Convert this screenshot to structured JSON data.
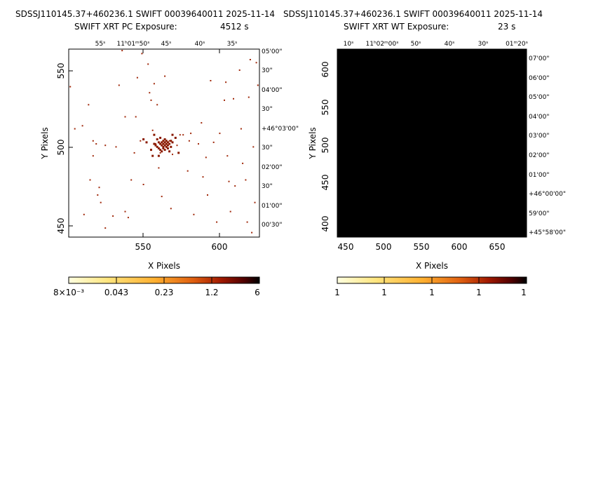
{
  "chart_data": [
    {
      "type": "heatmap",
      "title": "SDSSJ110145.37+460236.1 SWIFT 00039640011 2025-11-14",
      "subtitle_left": "SWIFT XRT PC Exposure:",
      "exposure": "4512 s",
      "xlabel": "X Pixels",
      "ylabel": "Y Pixels",
      "xlim": [
        503,
        628
      ],
      "ylim": [
        443,
        568
      ],
      "xticks": [
        "550",
        "600"
      ],
      "yticks": [
        "450",
        "500",
        "550"
      ],
      "ra_ticks": [
        "55ˢ",
        "11ʰ01ᵐ50ˢ",
        "45ˢ",
        "40ˢ",
        "35ˢ"
      ],
      "dec_ticks": [
        "05'00\"",
        "30\"",
        "04'00\"",
        "30\"",
        "+46°03'00\"",
        "30\"",
        "02'00\"",
        "30\"",
        "01'00\"",
        "00'30\""
      ],
      "colorbar_labels": [
        "8×10⁻³",
        "0.043",
        "0.23",
        "1.2",
        "6"
      ],
      "source_center": [
        565,
        504
      ],
      "events": [
        [
          504,
          543
        ],
        [
          507,
          515
        ],
        [
          512,
          517
        ],
        [
          513,
          458
        ],
        [
          516,
          531
        ],
        [
          517,
          481
        ],
        [
          519,
          507
        ],
        [
          519,
          497
        ],
        [
          521,
          505
        ],
        [
          522,
          471
        ],
        [
          523,
          476
        ],
        [
          524,
          466
        ],
        [
          527,
          449
        ],
        [
          527,
          504
        ],
        [
          532,
          457
        ],
        [
          534,
          503
        ],
        [
          536,
          544
        ],
        [
          538,
          567
        ],
        [
          540,
          523
        ],
        [
          540,
          460
        ],
        [
          542,
          456
        ],
        [
          544,
          481
        ],
        [
          546,
          499
        ],
        [
          547,
          523
        ],
        [
          548,
          549
        ],
        [
          550,
          507
        ],
        [
          551,
          565
        ],
        [
          552,
          478
        ],
        [
          555,
          558
        ],
        [
          556,
          539
        ],
        [
          557,
          534
        ],
        [
          558,
          514
        ],
        [
          559,
          545
        ],
        [
          560,
          505
        ],
        [
          561,
          531
        ],
        [
          562,
          489
        ],
        [
          563,
          499
        ],
        [
          564,
          470
        ],
        [
          566,
          550
        ],
        [
          569,
          507
        ],
        [
          570,
          462
        ],
        [
          571,
          498
        ],
        [
          574,
          504
        ],
        [
          576,
          511
        ],
        [
          578,
          511
        ],
        [
          581,
          487
        ],
        [
          582,
          507
        ],
        [
          583,
          512
        ],
        [
          585,
          458
        ],
        [
          588,
          505
        ],
        [
          590,
          519
        ],
        [
          591,
          483
        ],
        [
          593,
          496
        ],
        [
          594,
          471
        ],
        [
          596,
          547
        ],
        [
          598,
          506
        ],
        [
          600,
          453
        ],
        [
          602,
          512
        ],
        [
          605,
          534
        ],
        [
          606,
          546
        ],
        [
          607,
          497
        ],
        [
          608,
          480
        ],
        [
          609,
          460
        ],
        [
          611,
          535
        ],
        [
          612,
          477
        ],
        [
          615,
          554
        ],
        [
          616,
          515
        ],
        [
          617,
          492
        ],
        [
          619,
          481
        ],
        [
          620,
          453
        ],
        [
          621,
          536
        ],
        [
          622,
          561
        ],
        [
          623,
          446
        ],
        [
          624,
          503
        ],
        [
          625,
          466
        ],
        [
          626,
          559
        ],
        [
          627,
          544
        ]
      ],
      "source_pixels": [
        [
          559,
          505
        ],
        [
          560,
          504
        ],
        [
          561,
          503
        ],
        [
          561,
          508
        ],
        [
          562,
          502
        ],
        [
          562,
          506
        ],
        [
          563,
          505
        ],
        [
          563,
          501
        ],
        [
          563,
          509
        ],
        [
          564,
          504
        ],
        [
          564,
          506
        ],
        [
          564,
          500
        ],
        [
          565,
          503
        ],
        [
          565,
          505
        ],
        [
          565,
          507
        ],
        [
          565,
          502
        ],
        [
          566,
          504
        ],
        [
          566,
          506
        ],
        [
          566,
          501
        ],
        [
          566,
          508
        ],
        [
          567,
          503
        ],
        [
          567,
          505
        ],
        [
          567,
          507
        ],
        [
          568,
          504
        ],
        [
          568,
          502
        ],
        [
          568,
          506
        ],
        [
          569,
          505
        ],
        [
          569,
          500
        ],
        [
          570,
          503
        ],
        [
          570,
          507
        ],
        [
          571,
          506
        ],
        [
          557,
          501
        ],
        [
          559,
          511
        ],
        [
          573,
          509
        ],
        [
          558,
          497
        ],
        [
          562,
          497
        ],
        [
          575,
          499
        ],
        [
          554,
          506
        ],
        [
          552,
          508
        ],
        [
          571,
          511
        ]
      ]
    },
    {
      "type": "heatmap",
      "title": "SDSSJ110145.37+460236.1 SWIFT 00039640011 2025-11-14",
      "subtitle_left": "SWIFT XRT WT Exposure:",
      "exposure": "23 s",
      "xlabel": "X Pixels",
      "ylabel": "Y Pixels",
      "xlim": [
        437,
        689
      ],
      "ylim": [
        382,
        634
      ],
      "xticks": [
        "450",
        "500",
        "550",
        "600",
        "650"
      ],
      "yticks": [
        "400",
        "450",
        "500",
        "550",
        "600"
      ],
      "ra_ticks": [
        "10ˢ",
        "11ʰ02ᵐ00ˢ",
        "50ˢ",
        "40ˢ",
        "30ˢ",
        "01ᵐ20ˢ"
      ],
      "dec_ticks": [
        "07'00\"",
        "06'00\"",
        "05'00\"",
        "04'00\"",
        "03'00\"",
        "02'00\"",
        "01'00\"",
        "+46°00'00\"",
        "59'00\"",
        "+45°58'00\""
      ],
      "colorbar_labels": [
        "1",
        "1",
        "1",
        "1",
        "1"
      ]
    }
  ],
  "colors": {
    "background": "#ffffff",
    "event": "#a0280a",
    "wt_image": "#000000",
    "cb_gradient": [
      "#ffffe0",
      "#ffe680",
      "#ffb030",
      "#e06010",
      "#a01800",
      "#500000",
      "#000000"
    ]
  }
}
